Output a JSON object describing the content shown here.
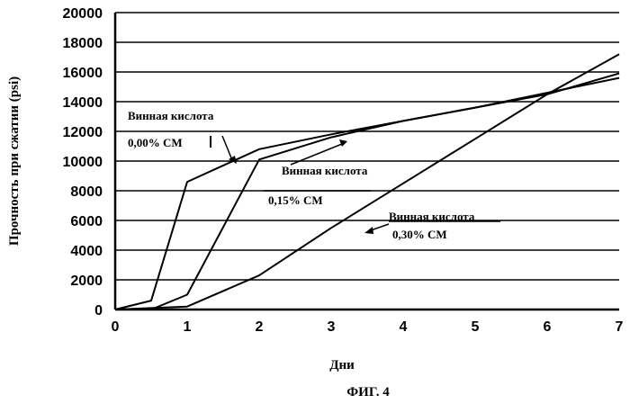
{
  "chart_data": {
    "type": "line",
    "title": "",
    "xlabel": "Дни",
    "ylabel": "Прочность при сжатии (psi)",
    "caption": "ФИГ. 4",
    "xlim": [
      0,
      7
    ],
    "ylim": [
      0,
      20000
    ],
    "x_ticks": [
      "0",
      "1",
      "2",
      "3",
      "4",
      "5",
      "6",
      "7"
    ],
    "y_ticks": [
      "0",
      "2000",
      "4000",
      "6000",
      "8000",
      "10000",
      "12000",
      "14000",
      "16000",
      "18000",
      "20000"
    ],
    "grid": "horizontal",
    "legend": "none",
    "series": [
      {
        "annotation_line1": "Винная кислота",
        "annotation_line2": "0,00% СМ",
        "x": [
          0,
          0.5,
          1,
          2,
          3,
          4,
          5,
          6,
          7
        ],
        "y": [
          0,
          600,
          8600,
          10800,
          11800,
          12700,
          13600,
          14600,
          15600
        ]
      },
      {
        "annotation_line1": "Винная кислота",
        "annotation_line2": "0,15% СМ",
        "x": [
          0,
          0.5,
          1,
          2,
          3,
          4,
          5,
          6,
          7
        ],
        "y": [
          0,
          0,
          1000,
          10100,
          11600,
          12700,
          13600,
          14500,
          15900
        ]
      },
      {
        "annotation_line1": "Винная кислота",
        "annotation_line2": "0,30% СМ",
        "x": [
          0,
          1,
          2,
          3,
          4,
          5,
          6,
          7
        ],
        "y": [
          0,
          200,
          2300,
          5500,
          8500,
          11500,
          14500,
          17200
        ]
      }
    ]
  }
}
